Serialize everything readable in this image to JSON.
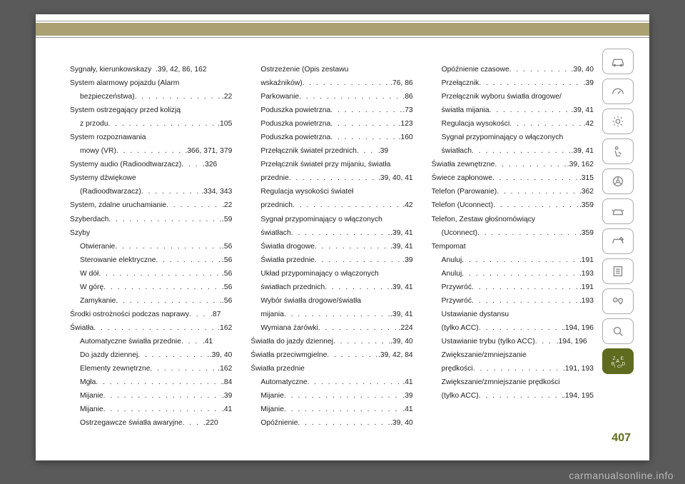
{
  "page_number": "407",
  "watermark": "carmanualsonline.info",
  "colors": {
    "band": "#aaa072",
    "active_icon_bg": "#5f6b1f",
    "page_num": "#5f6b1f",
    "text": "#222222",
    "page_bg": "#ffffff",
    "outer_bg": "#5a5a5a"
  },
  "entries": [
    {
      "label": "Sygnały, kierunkowskazy",
      "pages": ".39, 42, 86, 162",
      "sub": false,
      "nodots": true
    },
    {
      "label": "System alarmowy pojazdu (Alarm",
      "pages": "",
      "sub": false,
      "nodots": true
    },
    {
      "label": "bezpieczeństwa)",
      "pages": ".22",
      "sub": true
    },
    {
      "label": "System ostrzegający przed kolizją",
      "pages": "",
      "sub": false,
      "nodots": true
    },
    {
      "label": "z przodu",
      "pages": ".105",
      "sub": true
    },
    {
      "label": "System rozpoznawania",
      "pages": "",
      "sub": false,
      "nodots": true
    },
    {
      "label": "mowy (VR)",
      "pages": ".366, 371, 379",
      "sub": true
    },
    {
      "label": "Systemy audio (Radioodtwarzacz)",
      "pages": ".326",
      "sub": false,
      "short": true
    },
    {
      "label": "Systemy dźwiękowe",
      "pages": "",
      "sub": false,
      "nodots": true
    },
    {
      "label": "(Radioodtwarzacz)",
      "pages": ".334, 343",
      "sub": true
    },
    {
      "label": "System, zdalne uruchamianie",
      "pages": ".22",
      "sub": false
    },
    {
      "label": "Szyberdach",
      "pages": ".59",
      "sub": false
    },
    {
      "label": "Szyby",
      "pages": "",
      "sub": false,
      "nodots": true
    },
    {
      "label": "Otwieranie",
      "pages": ".56",
      "sub": true
    },
    {
      "label": "Sterowanie elektryczne",
      "pages": ".56",
      "sub": true
    },
    {
      "label": "W dół",
      "pages": ".56",
      "sub": true
    },
    {
      "label": "W górę",
      "pages": ".56",
      "sub": true
    },
    {
      "label": "Zamykanie",
      "pages": ".56",
      "sub": true
    },
    {
      "label": "Środki ostrożności podczas naprawy",
      "pages": ".87",
      "sub": false,
      "short": true
    },
    {
      "label": "Światła",
      "pages": ".162",
      "sub": false
    },
    {
      "label": "Automatyczne światła przednie",
      "pages": ".41",
      "sub": true,
      "short": true
    },
    {
      "label": "Do jazdy dziennej",
      "pages": ".39, 40",
      "sub": true
    },
    {
      "label": "Elementy zewnętrzne",
      "pages": ".162",
      "sub": true
    },
    {
      "label": "Mgła",
      "pages": ".84",
      "sub": true
    },
    {
      "label": "Mijanie",
      "pages": ".39",
      "sub": true
    },
    {
      "label": "Mijanie",
      "pages": ".41",
      "sub": true
    },
    {
      "label": "Ostrzegawcze światła awaryjne",
      "pages": ".220",
      "sub": true,
      "short": true
    },
    {
      "label": "Ostrzeżenie (Opis zestawu",
      "pages": "",
      "sub": true,
      "nodots": true
    },
    {
      "label": "wskaźników)",
      "pages": ".76, 86",
      "sub": true
    },
    {
      "label": "Parkowanie",
      "pages": ".86",
      "sub": true
    },
    {
      "label": "Poduszka powietrzna",
      "pages": ".73",
      "sub": true
    },
    {
      "label": "Poduszka powietrzna",
      "pages": ".123",
      "sub": true
    },
    {
      "label": "Poduszka powietrzna",
      "pages": ".160",
      "sub": true
    },
    {
      "label": "Przełącznik świateł przednich",
      "pages": ".39",
      "sub": true,
      "short": true
    },
    {
      "label": "Przełącznik świateł przy mijaniu, światła",
      "pages": "",
      "sub": true,
      "nodots": true
    },
    {
      "label": "przednie",
      "pages": ".39, 40, 41",
      "sub": true
    },
    {
      "label": "Regulacja wysokości świateł",
      "pages": "",
      "sub": true,
      "nodots": true
    },
    {
      "label": "przednich",
      "pages": ".42",
      "sub": true
    },
    {
      "label": "Sygnał przypominający o włączonych",
      "pages": "",
      "sub": true,
      "nodots": true
    },
    {
      "label": "światłach",
      "pages": ".39, 41",
      "sub": true
    },
    {
      "label": "Światła drogowe",
      "pages": ".39, 41",
      "sub": true
    },
    {
      "label": "Światła przednie",
      "pages": ".39",
      "sub": true
    },
    {
      "label": "Układ przypominający o włączonych",
      "pages": "",
      "sub": true,
      "nodots": true
    },
    {
      "label": "światłach przednich",
      "pages": ".39, 41",
      "sub": true
    },
    {
      "label": "Wybór światła drogowe/światła",
      "pages": "",
      "sub": true,
      "nodots": true
    },
    {
      "label": "mijania",
      "pages": ".39, 41",
      "sub": true
    },
    {
      "label": "Wymiana żarówki",
      "pages": ".224",
      "sub": true
    },
    {
      "label": "Światła do jazdy dziennej",
      "pages": ".39, 40",
      "sub": false
    },
    {
      "label": "Światła przeciwmgielne",
      "pages": ".39, 42, 84",
      "sub": false
    },
    {
      "label": "Światła przednie",
      "pages": "",
      "sub": false,
      "nodots": true
    },
    {
      "label": "Automatyczne",
      "pages": ".41",
      "sub": true
    },
    {
      "label": "Mijanie",
      "pages": ".39",
      "sub": true
    },
    {
      "label": "Mijanie",
      "pages": ".41",
      "sub": true
    },
    {
      "label": "Opóźnienie",
      "pages": ".39, 40",
      "sub": true
    },
    {
      "label": "Opóźnienie czasowe",
      "pages": ".39, 40",
      "sub": true
    },
    {
      "label": "Przełącznik",
      "pages": ".39",
      "sub": true
    },
    {
      "label": "Przełącznik wyboru światła drogowe/",
      "pages": "",
      "sub": true,
      "nodots": true
    },
    {
      "label": "światła mijania",
      "pages": ".39, 41",
      "sub": true
    },
    {
      "label": "Regulacja wysokości",
      "pages": ".42",
      "sub": true
    },
    {
      "label": "Sygnał przypominający o włączonych",
      "pages": "",
      "sub": true,
      "nodots": true
    },
    {
      "label": "światłach",
      "pages": ".39, 41",
      "sub": true
    },
    {
      "label": "Światła zewnętrzne",
      "pages": ".39, 162",
      "sub": false
    },
    {
      "label": "Świece zapłonowe",
      "pages": ".315",
      "sub": false
    },
    {
      "label": "",
      "pages": "",
      "sub": false,
      "nodots": true
    },
    {
      "label": "Telefon (Parowanie)",
      "pages": ".362",
      "sub": false
    },
    {
      "label": "Telefon (Uconnect)",
      "pages": ".359",
      "sub": false
    },
    {
      "label": "Telefon, Zestaw głośnomówiący",
      "pages": "",
      "sub": false,
      "nodots": true
    },
    {
      "label": "(Uconnect)",
      "pages": ".359",
      "sub": true
    },
    {
      "label": "Tempomat",
      "pages": "",
      "sub": false,
      "nodots": true
    },
    {
      "label": "Anuluj",
      "pages": ".191",
      "sub": true
    },
    {
      "label": "Anuluj",
      "pages": ".193",
      "sub": true
    },
    {
      "label": "Przywróć",
      "pages": ".191",
      "sub": true
    },
    {
      "label": "Przywróć",
      "pages": ".193",
      "sub": true
    },
    {
      "label": "Ustawianie dystansu",
      "pages": "",
      "sub": true,
      "nodots": true
    },
    {
      "label": "(tylko ACC)",
      "pages": ".194, 196",
      "sub": true
    },
    {
      "label": "Ustawianie trybu (tylko ACC)",
      "pages": ".194, 196",
      "sub": true,
      "short": true
    },
    {
      "label": "Zwiększanie/zmniejszanie",
      "pages": "",
      "sub": true,
      "nodots": true
    },
    {
      "label": "prędkości",
      "pages": ".191, 193",
      "sub": true
    },
    {
      "label": "Zwiększanie/zmniejszanie prędkości",
      "pages": "",
      "sub": true,
      "nodots": true
    },
    {
      "label": "(tylko ACC)",
      "pages": ".194, 195",
      "sub": true
    }
  ],
  "icons": [
    "car",
    "gauge",
    "sun",
    "seat",
    "wheel",
    "car-alert",
    "wrench",
    "list",
    "music-pin",
    "search",
    "index"
  ]
}
